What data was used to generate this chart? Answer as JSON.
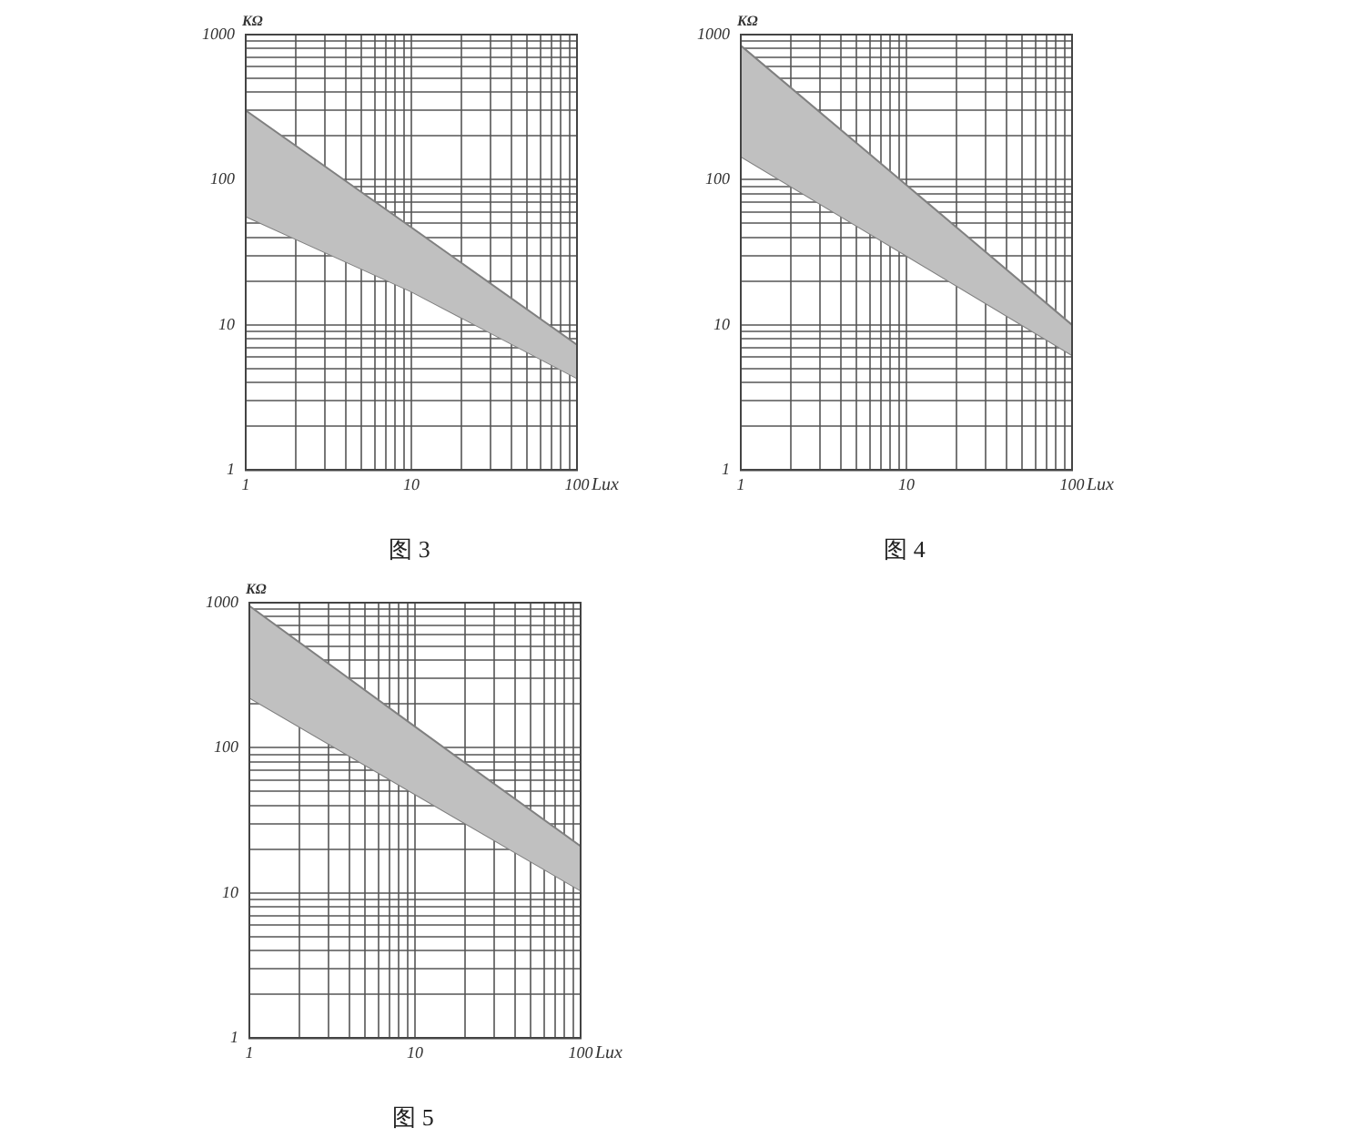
{
  "chart_data": [
    {
      "type": "area",
      "xlabel": "Lux",
      "ylabel": "KΩ",
      "log": "xy",
      "grid": true,
      "marker": "none",
      "legend": false,
      "x": [
        1,
        10,
        100
      ],
      "xlim": [
        1,
        100
      ],
      "ylim": [
        1,
        1000
      ],
      "xticks": [
        1,
        {
          "value": 2,
          "label": null
        },
        {
          "value": 3,
          "label": null
        },
        {
          "value": 4,
          "label": null
        },
        {
          "value": 5,
          "label": null
        },
        {
          "value": 6,
          "label": null
        },
        {
          "value": 7,
          "label": null
        },
        {
          "value": 8,
          "label": null
        },
        {
          "value": 9,
          "label": null
        },
        10,
        {
          "value": 20,
          "label": null
        },
        {
          "value": 30,
          "label": null
        },
        {
          "value": 40,
          "label": null
        },
        {
          "value": 50,
          "label": null
        },
        {
          "value": 60,
          "label": null
        },
        {
          "value": 70,
          "label": null
        },
        {
          "value": 80,
          "label": null
        },
        {
          "value": 90,
          "label": null
        },
        100
      ],
      "yticks": [
        1,
        {
          "value": 2,
          "label": null
        },
        {
          "value": 3,
          "label": null
        },
        {
          "value": 4,
          "label": null
        },
        {
          "value": 5,
          "label": null
        },
        {
          "value": 6,
          "label": null
        },
        {
          "value": 7,
          "label": null
        },
        {
          "value": 8,
          "label": null
        },
        {
          "value": 9,
          "label": null
        },
        10,
        {
          "value": 20,
          "label": null
        },
        {
          "value": 30,
          "label": null
        },
        {
          "value": 40,
          "label": null
        },
        {
          "value": 50,
          "label": null
        },
        {
          "value": 60,
          "label": null
        },
        {
          "value": 70,
          "label": null
        },
        {
          "value": 80,
          "label": null
        },
        {
          "value": 90,
          "label": null
        },
        100,
        {
          "value": 200,
          "label": null
        },
        {
          "value": 300,
          "label": null
        },
        {
          "value": 400,
          "label": null
        },
        {
          "value": 500,
          "label": null
        },
        {
          "value": 600,
          "label": null
        },
        {
          "value": 700,
          "label": null
        },
        {
          "value": 800,
          "label": null
        },
        {
          "value": 900,
          "label": null
        },
        1000
      ],
      "series": [
        {
          "color": "#c0c0c0",
          "values": [
            300,
            47,
            7.3
          ]
        },
        {
          "type": "line",
          "color": "#808080",
          "values": [
            56,
            17,
            4.3
          ]
        }
      ],
      "annotations": [
        "图 3"
      ]
    },
    {
      "type": "area",
      "xlabel": "Lux",
      "ylabel": "KΩ",
      "log": "xy",
      "grid": true,
      "marker": "none",
      "legend": false,
      "x": [
        1,
        10,
        100
      ],
      "xlim": [
        1,
        100
      ],
      "ylim": [
        1,
        1000
      ],
      "xticks": [
        1,
        {
          "value": 2,
          "label": null
        },
        {
          "value": 3,
          "label": null
        },
        {
          "value": 4,
          "label": null
        },
        {
          "value": 5,
          "label": null
        },
        {
          "value": 6,
          "label": null
        },
        {
          "value": 7,
          "label": null
        },
        {
          "value": 8,
          "label": null
        },
        {
          "value": 9,
          "label": null
        },
        10,
        {
          "value": 20,
          "label": null
        },
        {
          "value": 30,
          "label": null
        },
        {
          "value": 40,
          "label": null
        },
        {
          "value": 50,
          "label": null
        },
        {
          "value": 60,
          "label": null
        },
        {
          "value": 70,
          "label": null
        },
        {
          "value": 80,
          "label": null
        },
        {
          "value": 90,
          "label": null
        },
        100
      ],
      "yticks": [
        1,
        {
          "value": 2,
          "label": null
        },
        {
          "value": 3,
          "label": null
        },
        {
          "value": 4,
          "label": null
        },
        {
          "value": 5,
          "label": null
        },
        {
          "value": 6,
          "label": null
        },
        {
          "value": 7,
          "label": null
        },
        {
          "value": 8,
          "label": null
        },
        {
          "value": 9,
          "label": null
        },
        10,
        {
          "value": 20,
          "label": null
        },
        {
          "value": 30,
          "label": null
        },
        {
          "value": 40,
          "label": null
        },
        {
          "value": 50,
          "label": null
        },
        {
          "value": 60,
          "label": null
        },
        {
          "value": 70,
          "label": null
        },
        {
          "value": 80,
          "label": null
        },
        {
          "value": 90,
          "label": null
        },
        100,
        {
          "value": 200,
          "label": null
        },
        {
          "value": 300,
          "label": null
        },
        {
          "value": 400,
          "label": null
        },
        {
          "value": 500,
          "label": null
        },
        {
          "value": 600,
          "label": null
        },
        {
          "value": 700,
          "label": null
        },
        {
          "value": 800,
          "label": null
        },
        {
          "value": 900,
          "label": null
        },
        1000
      ],
      "series": [
        {
          "color": "#c0c0c0",
          "values": [
            840,
            92,
            10
          ]
        },
        {
          "type": "line",
          "color": "#808080",
          "values": [
            145,
            30,
            6.2
          ]
        }
      ],
      "annotations": [
        "图 4"
      ]
    },
    {
      "type": "area",
      "xlabel": "Lux",
      "ylabel": "KΩ",
      "log": "xy",
      "grid": true,
      "marker": "none",
      "legend": false,
      "x": [
        1,
        10,
        100
      ],
      "xlim": [
        1,
        100
      ],
      "ylim": [
        1,
        1000
      ],
      "xticks": [
        1,
        {
          "value": 2,
          "label": null
        },
        {
          "value": 3,
          "label": null
        },
        {
          "value": 4,
          "label": null
        },
        {
          "value": 5,
          "label": null
        },
        {
          "value": 6,
          "label": null
        },
        {
          "value": 7,
          "label": null
        },
        {
          "value": 8,
          "label": null
        },
        {
          "value": 9,
          "label": null
        },
        10,
        {
          "value": 20,
          "label": null
        },
        {
          "value": 30,
          "label": null
        },
        {
          "value": 40,
          "label": null
        },
        {
          "value": 50,
          "label": null
        },
        {
          "value": 60,
          "label": null
        },
        {
          "value": 70,
          "label": null
        },
        {
          "value": 80,
          "label": null
        },
        {
          "value": 90,
          "label": null
        },
        100
      ],
      "yticks": [
        1,
        {
          "value": 2,
          "label": null
        },
        {
          "value": 3,
          "label": null
        },
        {
          "value": 4,
          "label": null
        },
        {
          "value": 5,
          "label": null
        },
        {
          "value": 6,
          "label": null
        },
        {
          "value": 7,
          "label": null
        },
        {
          "value": 8,
          "label": null
        },
        {
          "value": 9,
          "label": null
        },
        10,
        {
          "value": 20,
          "label": null
        },
        {
          "value": 30,
          "label": null
        },
        {
          "value": 40,
          "label": null
        },
        {
          "value": 50,
          "label": null
        },
        {
          "value": 60,
          "label": null
        },
        {
          "value": 70,
          "label": null
        },
        {
          "value": 80,
          "label": null
        },
        {
          "value": 90,
          "label": null
        },
        100,
        {
          "value": 200,
          "label": null
        },
        {
          "value": 300,
          "label": null
        },
        {
          "value": 400,
          "label": null
        },
        {
          "value": 500,
          "label": null
        },
        {
          "value": 600,
          "label": null
        },
        {
          "value": 700,
          "label": null
        },
        {
          "value": 800,
          "label": null
        },
        {
          "value": 900,
          "label": null
        },
        1000
      ],
      "series": [
        {
          "color": "#c0c0c0",
          "values": [
            950,
            140,
            21
          ]
        },
        {
          "type": "line",
          "color": "#808080",
          "values": [
            222,
            48,
            10.4
          ]
        }
      ],
      "annotations": [
        "图 5"
      ]
    }
  ]
}
